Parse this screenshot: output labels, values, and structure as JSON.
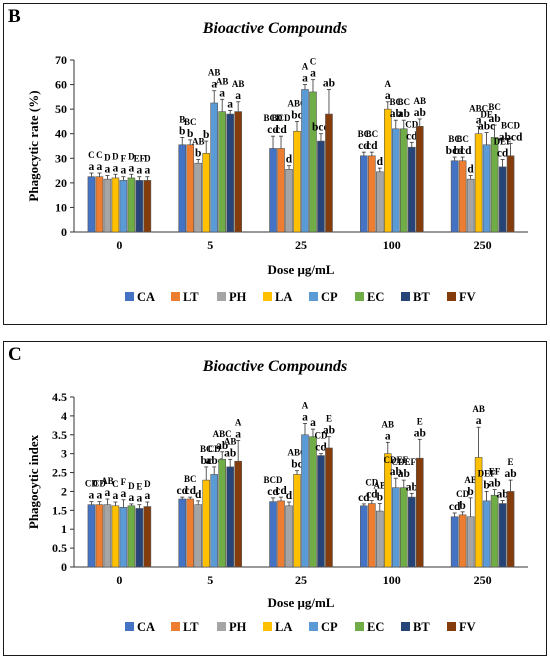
{
  "chart_data": [
    {
      "panel": "B",
      "type": "bar",
      "title": "Bioactive Compounds",
      "xlabel": "Dose μg/mL",
      "ylabel": "Phagocytic rate (%)",
      "categories": [
        "0",
        "5",
        "25",
        "100",
        "250"
      ],
      "ylim": [
        0,
        70
      ],
      "yticks": [
        "0",
        "10",
        "20",
        "30",
        "40",
        "50",
        "60",
        "70"
      ],
      "legend_position": "bottom",
      "series": [
        {
          "name": "CA",
          "color": "#4472C4",
          "values": [
            22.5,
            35.5,
            34,
            31,
            29
          ],
          "errors": [
            1.5,
            3,
            5,
            1.5,
            1.5
          ],
          "letters": [
            "a",
            "b",
            "cd",
            "cd",
            "bcd"
          ],
          "upper_letters": [
            "C",
            "B",
            "BCD",
            "BC",
            "BC"
          ]
        },
        {
          "name": "LT",
          "color": "#ED7D31",
          "values": [
            22.5,
            35.5,
            34,
            31,
            29
          ],
          "errors": [
            1.5,
            2,
            5,
            1.5,
            1.5
          ],
          "letters": [
            "a",
            "b",
            "cd",
            "cd",
            "bcd"
          ],
          "upper_letters": [
            "C",
            "BC",
            "BCD",
            "BC",
            "BC"
          ]
        },
        {
          "name": "PH",
          "color": "#A5A5A5",
          "values": [
            21.5,
            28,
            25.5,
            24.5,
            21.5
          ],
          "errors": [
            1.5,
            1.5,
            1.5,
            1.5,
            1.5
          ],
          "letters": [
            "a",
            "b",
            "d",
            "d",
            "d"
          ],
          "upper_letters": [
            "D",
            "AB",
            "",
            "",
            ""
          ]
        },
        {
          "name": "LA",
          "color": "#FFC000",
          "values": [
            22,
            32,
            41,
            50,
            40
          ],
          "errors": [
            1.5,
            5,
            4,
            3,
            3
          ],
          "letters": [
            "a",
            "b",
            "bc",
            "a",
            "a"
          ],
          "upper_letters": [
            "D",
            "",
            "ABC",
            "A",
            "ABC"
          ]
        },
        {
          "name": "CP",
          "color": "#5B9BD5",
          "values": [
            21,
            52.5,
            58,
            42,
            35.5
          ],
          "errors": [
            1.5,
            5,
            2,
            3.5,
            5
          ],
          "letters": [
            "a",
            "a",
            "a",
            "ab",
            "abc"
          ],
          "upper_letters": [
            "F",
            "AB",
            "A",
            "BC",
            "DE"
          ]
        },
        {
          "name": "EC",
          "color": "#70AD47",
          "values": [
            22,
            49,
            57,
            42,
            38.5
          ],
          "errors": [
            1.5,
            5,
            5,
            3.5,
            5
          ],
          "letters": [
            "a",
            "a",
            "a",
            "ab",
            "ab"
          ],
          "upper_letters": [
            "D",
            "AB",
            "C",
            "BC",
            "BC"
          ]
        },
        {
          "name": "BT",
          "color": "#264478",
          "values": [
            21,
            48,
            37,
            34.5,
            26.5
          ],
          "errors": [
            1.5,
            1.5,
            3,
            2,
            3
          ],
          "letters": [
            "a",
            "a",
            "bcd",
            "cd",
            "cd"
          ],
          "upper_letters": [
            "EF",
            "",
            "",
            "CD",
            "DEF"
          ]
        },
        {
          "name": "FV",
          "color": "#843C0C",
          "values": [
            21,
            49,
            48,
            43,
            31
          ],
          "errors": [
            1.5,
            4,
            10,
            3,
            5
          ],
          "letters": [
            "a",
            "a",
            "ab",
            "ab",
            "abcd"
          ],
          "upper_letters": [
            "D",
            "AB",
            "",
            "AB",
            "BCD"
          ]
        }
      ]
    },
    {
      "panel": "C",
      "type": "bar",
      "title": "Bioactive Compounds",
      "xlabel": "Dose μg/mL",
      "ylabel": "Phagocytic index",
      "categories": [
        "0",
        "5",
        "25",
        "100",
        "250"
      ],
      "ylim": [
        0,
        4.5
      ],
      "yticks": [
        "0",
        "0.5",
        "1",
        "1.5",
        "2",
        "2.5",
        "3",
        "3.5",
        "4",
        "4.5"
      ],
      "legend_position": "bottom",
      "series": [
        {
          "name": "CA",
          "color": "#4472C4",
          "values": [
            1.65,
            1.8,
            1.73,
            1.62,
            1.33
          ],
          "errors": [
            0.08,
            0.05,
            0.1,
            0.05,
            0.1
          ],
          "letters": [
            "a",
            "cd",
            "cd",
            "cd",
            "cd"
          ],
          "upper_letters": [
            "CD",
            "",
            "BCD",
            "",
            ""
          ]
        },
        {
          "name": "LT",
          "color": "#ED7D31",
          "values": [
            1.65,
            1.8,
            1.75,
            1.68,
            1.38
          ],
          "errors": [
            0.08,
            0.05,
            0.1,
            0.08,
            0.08
          ],
          "letters": [
            "a",
            "cd",
            "cd",
            "cd",
            "b"
          ],
          "upper_letters": [
            "CD",
            "BC",
            "",
            "CD",
            "CD"
          ]
        },
        {
          "name": "PH",
          "color": "#A5A5A5",
          "values": [
            1.65,
            1.65,
            1.62,
            1.48,
            1.33
          ],
          "errors": [
            0.15,
            0.1,
            0.1,
            0.2,
            0.5
          ],
          "letters": [
            "a",
            "d",
            "d",
            "b",
            "b"
          ],
          "upper_letters": [
            "AB",
            "",
            "",
            "AB",
            "AB"
          ]
        },
        {
          "name": "LA",
          "color": "#FFC000",
          "values": [
            1.62,
            2.3,
            2.45,
            3.0,
            2.9
          ],
          "errors": [
            0.1,
            0.35,
            0.1,
            0.3,
            0.8
          ],
          "letters": [
            "a",
            "bc",
            "bc",
            "a",
            "a"
          ],
          "upper_letters": [
            "C",
            "BC",
            "ABC",
            "AB",
            "AB"
          ]
        },
        {
          "name": "CP",
          "color": "#5B9BD5",
          "values": [
            1.58,
            2.45,
            3.5,
            2.1,
            1.75
          ],
          "errors": [
            0.2,
            0.2,
            0.3,
            0.25,
            0.25
          ],
          "letters": [
            "a",
            "abc",
            "a",
            "ab",
            "b"
          ],
          "upper_letters": [
            "F",
            "CD",
            "A",
            "CDEF",
            "DEF"
          ]
        },
        {
          "name": "EC",
          "color": "#70AD47",
          "values": [
            1.62,
            2.85,
            3.45,
            2.1,
            1.9
          ],
          "errors": [
            0.05,
            0.2,
            0.2,
            0.2,
            0.15
          ],
          "letters": [
            "a",
            "ab",
            "a",
            "ab",
            "ab"
          ],
          "upper_letters": [
            "D",
            "ABC",
            "",
            "CDEF",
            "EF"
          ]
        },
        {
          "name": "BT",
          "color": "#264478",
          "values": [
            1.55,
            2.65,
            2.95,
            1.85,
            1.68
          ],
          "errors": [
            0.1,
            0.2,
            0.05,
            0.1,
            0.08
          ],
          "letters": [
            "a",
            "ab",
            "cd",
            "ab",
            "ab"
          ],
          "upper_letters": [
            "E",
            "AB",
            "CD",
            "",
            ""
          ]
        },
        {
          "name": "FV",
          "color": "#843C0C",
          "values": [
            1.6,
            2.8,
            3.15,
            2.88,
            2.0
          ],
          "errors": [
            0.12,
            0.55,
            0.3,
            0.5,
            0.3
          ],
          "letters": [
            "a",
            "a",
            "ab",
            "ab",
            "ab"
          ],
          "upper_letters": [
            "D",
            "A",
            "E",
            "E",
            "E"
          ]
        }
      ]
    }
  ]
}
